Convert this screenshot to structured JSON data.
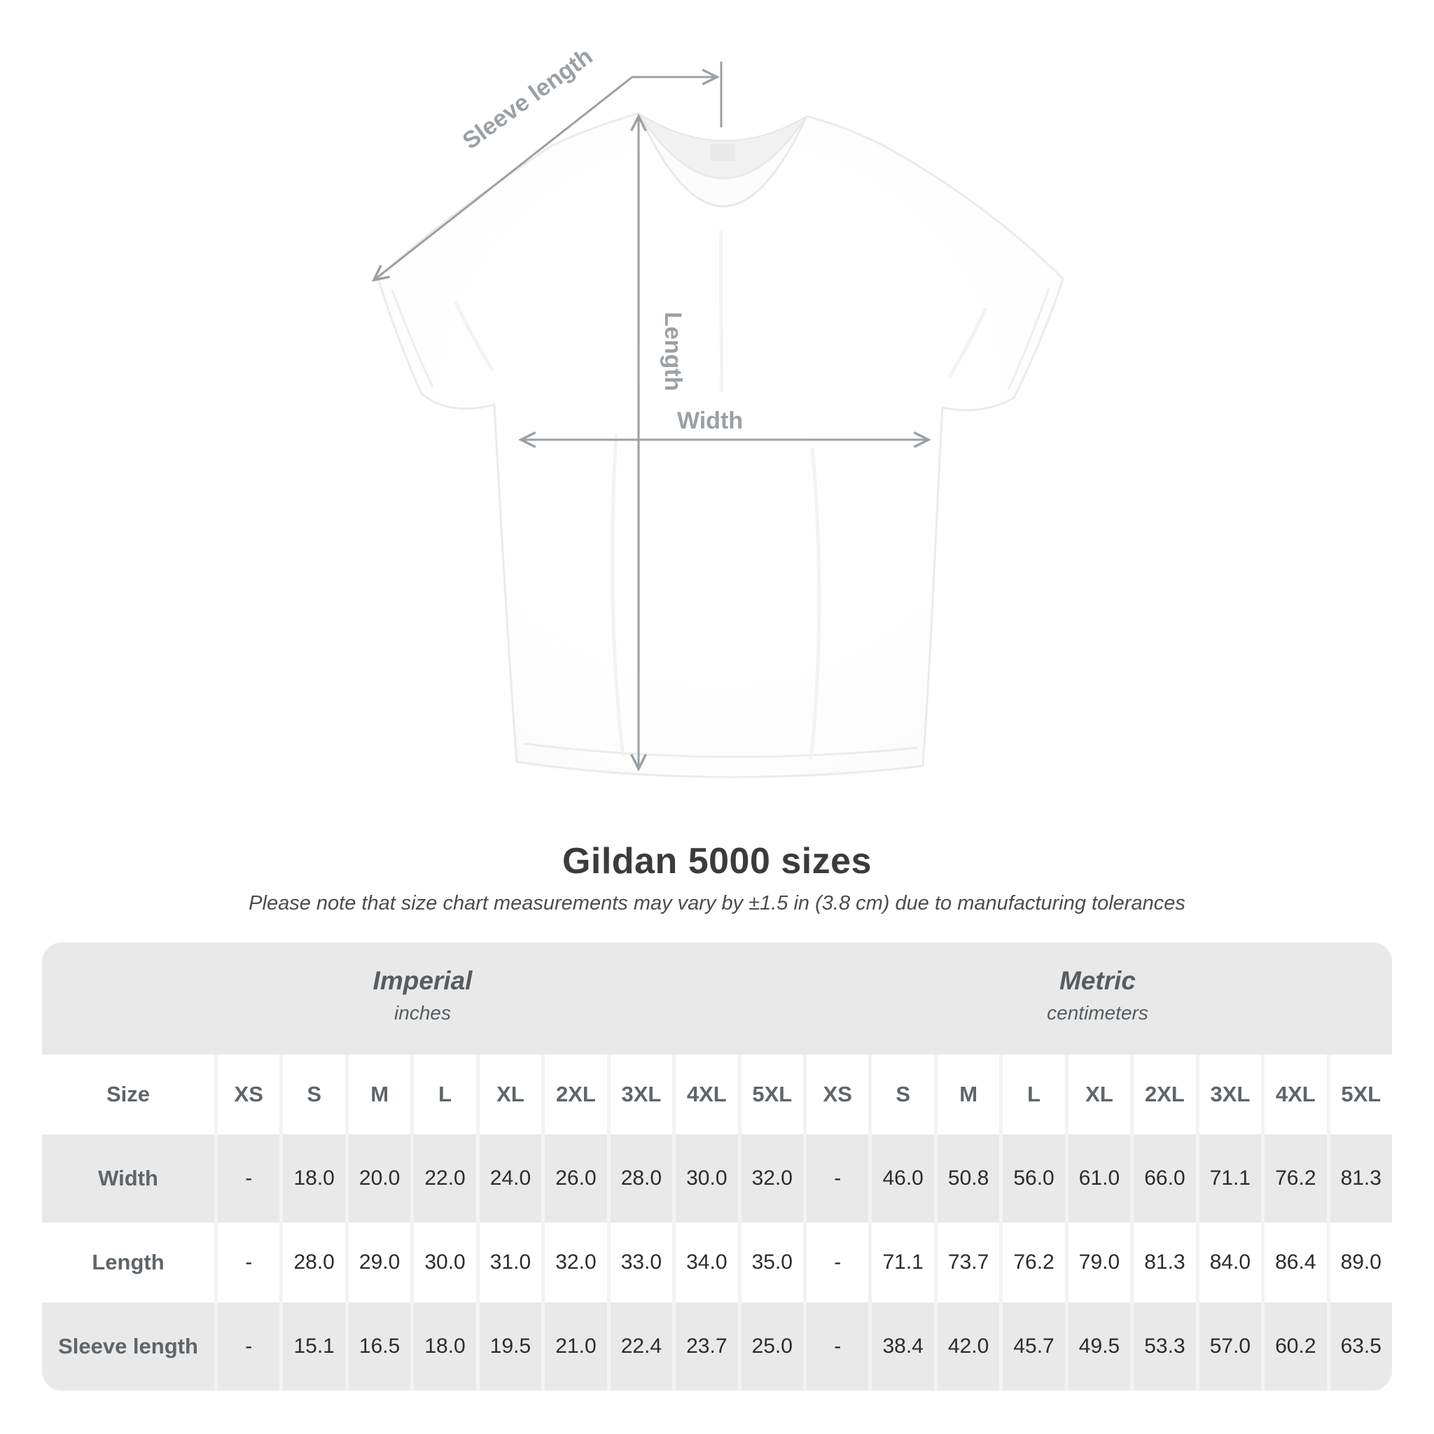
{
  "diagram": {
    "sleeve_length_label": "Sleeve length",
    "length_label": "Length",
    "width_label": "Width"
  },
  "title": "Gildan 5000 sizes",
  "subtitle": "Please note that size chart measurements may vary by ±1.5 in (3.8 cm) due to manufacturing tolerances",
  "table": {
    "sections": [
      {
        "label": "Imperial",
        "sublabel": "inches"
      },
      {
        "label": "Metric",
        "sublabel": "centimeters"
      }
    ],
    "size_header": "Size",
    "sizes": [
      "XS",
      "S",
      "M",
      "L",
      "XL",
      "2XL",
      "3XL",
      "4XL",
      "5XL"
    ],
    "rows": [
      {
        "label": "Width",
        "imperial": [
          "-",
          "18.0",
          "20.0",
          "22.0",
          "24.0",
          "26.0",
          "28.0",
          "30.0",
          "32.0"
        ],
        "metric": [
          "-",
          "46.0",
          "50.8",
          "56.0",
          "61.0",
          "66.0",
          "71.1",
          "76.2",
          "81.3"
        ]
      },
      {
        "label": "Length",
        "imperial": [
          "-",
          "28.0",
          "29.0",
          "30.0",
          "31.0",
          "32.0",
          "33.0",
          "34.0",
          "35.0"
        ],
        "metric": [
          "-",
          "71.1",
          "73.7",
          "76.2",
          "79.0",
          "81.3",
          "84.0",
          "86.4",
          "89.0"
        ]
      },
      {
        "label": "Sleeve length",
        "imperial": [
          "-",
          "15.1",
          "16.5",
          "18.0",
          "19.5",
          "21.0",
          "22.4",
          "23.7",
          "25.0"
        ],
        "metric": [
          "-",
          "38.4",
          "42.0",
          "45.7",
          "49.5",
          "53.3",
          "57.0",
          "60.2",
          "63.5"
        ]
      }
    ]
  },
  "colors": {
    "annotation_gray": "#9ba0a4",
    "row_gray": "#e9e9e9",
    "grid_gap": "#f3f3f3",
    "header_text": "#5f6569",
    "number_text": "#2c2c2c",
    "title_text": "#3b3b3b"
  }
}
